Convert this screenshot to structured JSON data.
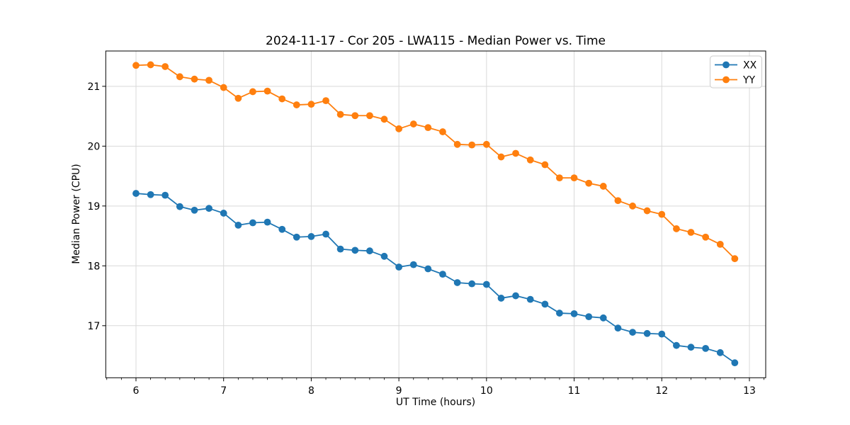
{
  "chart_data": {
    "type": "line",
    "title": "2024-11-17 - Cor 205 - LWA115 - Median Power vs. Time",
    "xlabel": "UT Time (hours)",
    "ylabel": "Median Power (CPU)",
    "xlim": [
      5.655,
      13.186
    ],
    "ylim": [
      16.13,
      21.59
    ],
    "xticks": [
      6,
      7,
      8,
      9,
      10,
      11,
      12,
      13
    ],
    "yticks": [
      17,
      18,
      19,
      20,
      21
    ],
    "x_minor_step": 0.166667,
    "grid": true,
    "grid_color": "#d9d9d9",
    "legend": {
      "position": "upper right",
      "entries": [
        "XX",
        "YY"
      ]
    },
    "x": [
      6.0,
      6.167,
      6.333,
      6.5,
      6.667,
      6.833,
      7.0,
      7.167,
      7.333,
      7.5,
      7.667,
      7.833,
      8.0,
      8.167,
      8.333,
      8.5,
      8.667,
      8.833,
      9.0,
      9.167,
      9.333,
      9.5,
      9.667,
      9.833,
      10.0,
      10.167,
      10.333,
      10.5,
      10.667,
      10.833,
      11.0,
      11.167,
      11.333,
      11.5,
      11.667,
      11.833,
      12.0,
      12.167,
      12.333,
      12.5,
      12.667,
      12.833
    ],
    "series": [
      {
        "name": "XX",
        "color": "#1f77b4",
        "values": [
          19.21,
          19.19,
          19.18,
          18.99,
          18.93,
          18.96,
          18.88,
          18.68,
          18.72,
          18.73,
          18.61,
          18.48,
          18.49,
          18.53,
          18.28,
          18.26,
          18.25,
          18.16,
          17.98,
          18.02,
          17.95,
          17.86,
          17.72,
          17.7,
          17.69,
          17.46,
          17.5,
          17.44,
          17.36,
          17.21,
          17.2,
          17.15,
          17.13,
          16.96,
          16.89,
          16.87,
          16.86,
          16.67,
          16.64,
          16.62,
          16.55,
          16.38
        ]
      },
      {
        "name": "YY",
        "color": "#ff7f0e",
        "values": [
          21.35,
          21.36,
          21.33,
          21.16,
          21.12,
          21.1,
          20.98,
          20.8,
          20.91,
          20.92,
          20.79,
          20.69,
          20.7,
          20.76,
          20.53,
          20.51,
          20.51,
          20.45,
          20.29,
          20.37,
          20.31,
          20.24,
          20.03,
          20.02,
          20.03,
          19.82,
          19.88,
          19.77,
          19.69,
          19.47,
          19.47,
          19.38,
          19.33,
          19.09,
          19.0,
          18.92,
          18.86,
          18.62,
          18.56,
          18.48,
          18.36,
          18.12
        ]
      }
    ]
  }
}
